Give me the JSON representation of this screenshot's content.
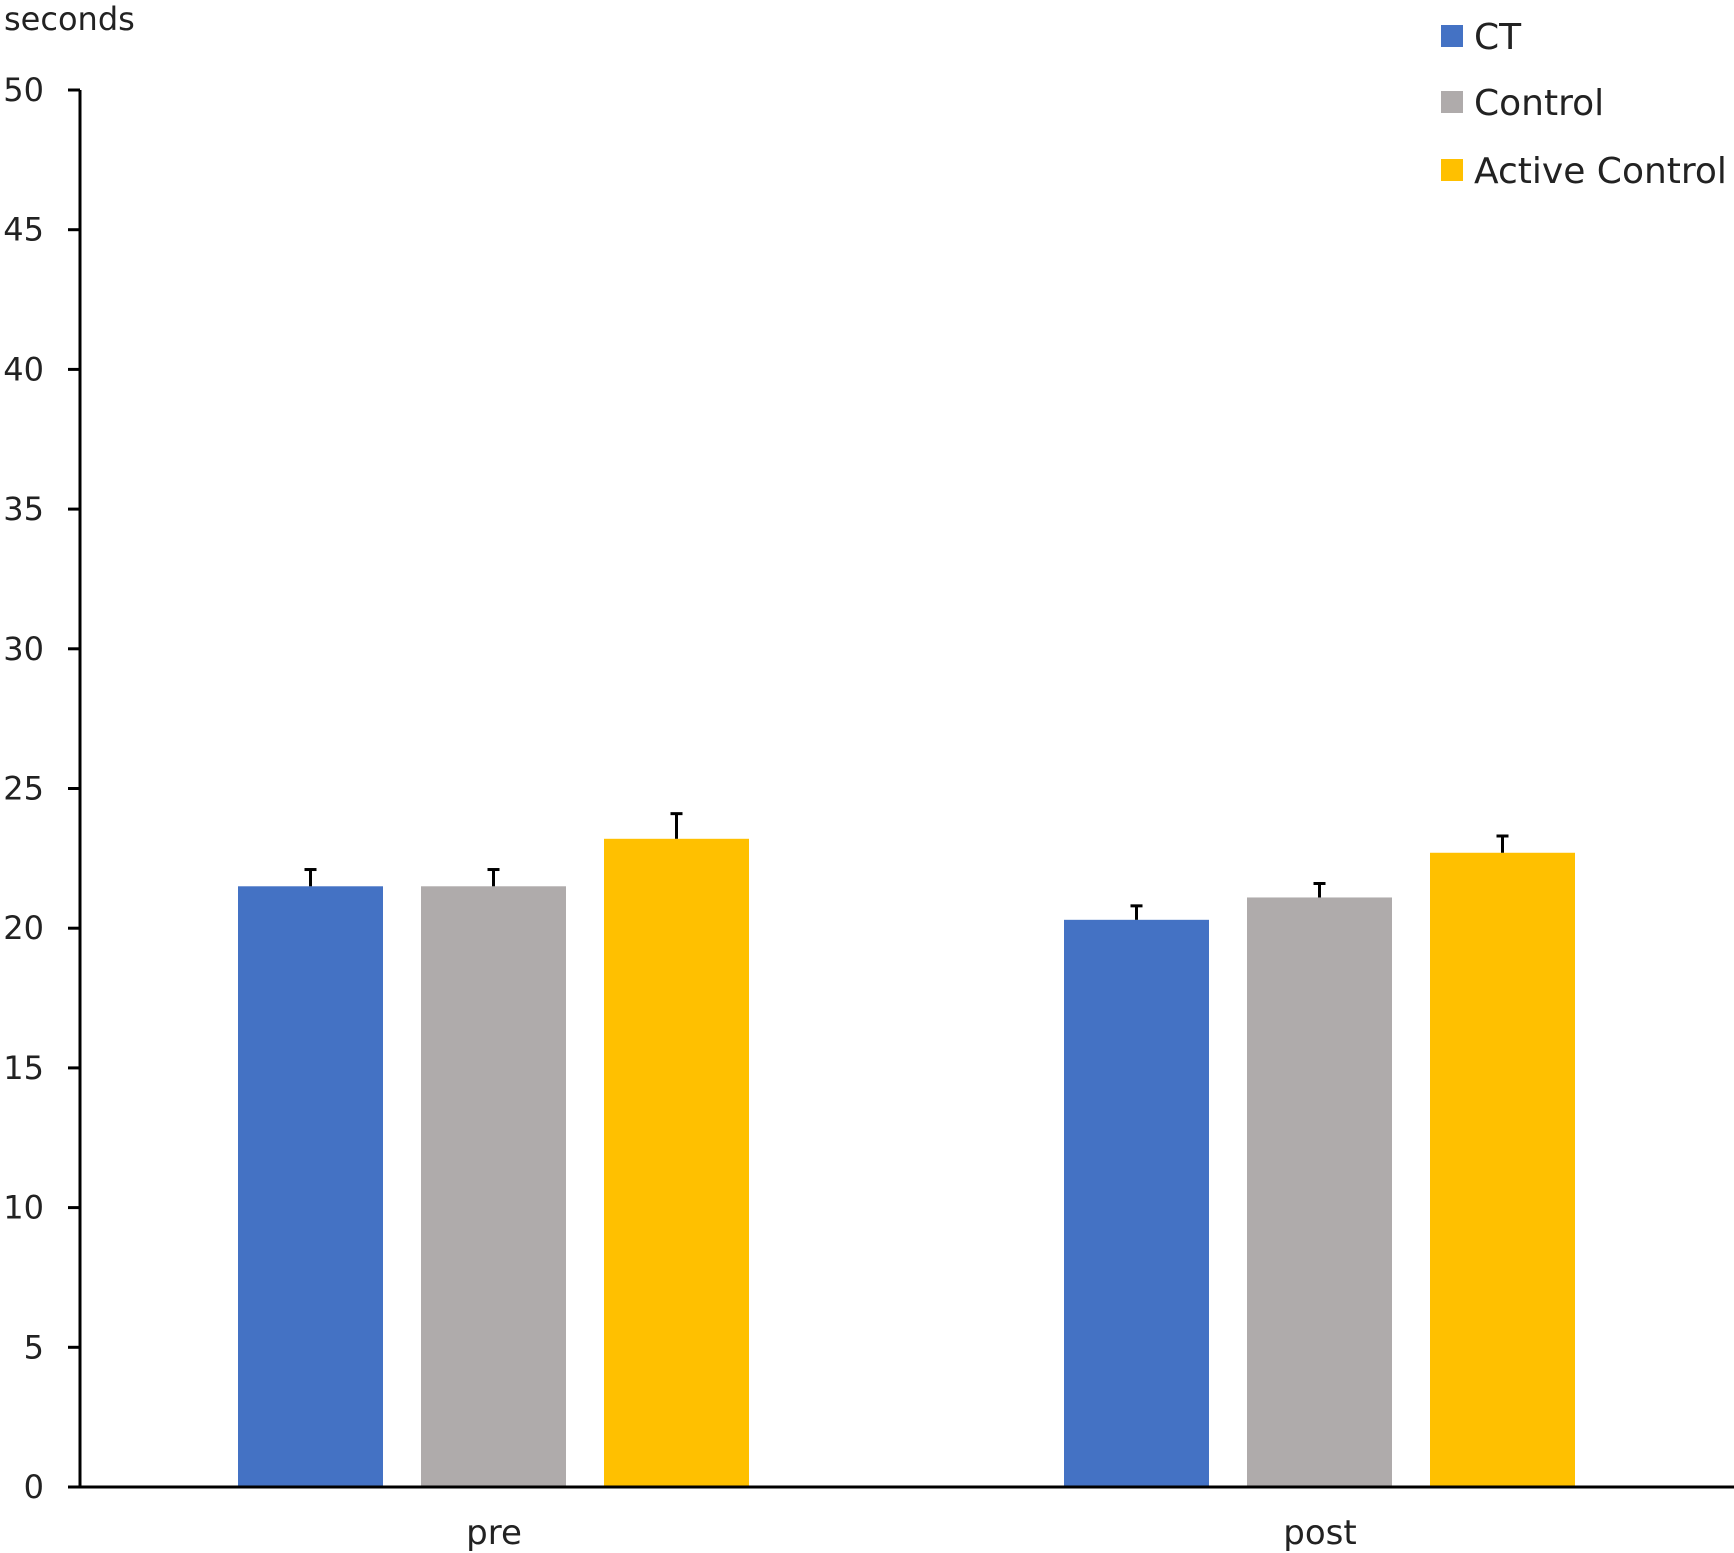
{
  "chart_data": {
    "type": "bar",
    "title": "",
    "xlabel": "",
    "ylabel": "seconds",
    "ylim": [
      0,
      50
    ],
    "yticks": [
      0,
      5,
      10,
      15,
      20,
      25,
      30,
      35,
      40,
      45,
      50
    ],
    "categories": [
      "pre",
      "post"
    ],
    "series": [
      {
        "name": "CT",
        "color": "#4472C4",
        "values": [
          21.5,
          20.3
        ],
        "errors": [
          0.6,
          0.5
        ]
      },
      {
        "name": "Control",
        "color": "#AFABAB",
        "values": [
          21.5,
          21.1
        ],
        "errors": [
          0.6,
          0.5
        ]
      },
      {
        "name": "Active Control",
        "color": "#FFC000",
        "values": [
          23.2,
          22.7
        ],
        "errors": [
          0.9,
          0.6
        ]
      }
    ],
    "grid": false,
    "legend": "top-right",
    "error_bars": true
  }
}
